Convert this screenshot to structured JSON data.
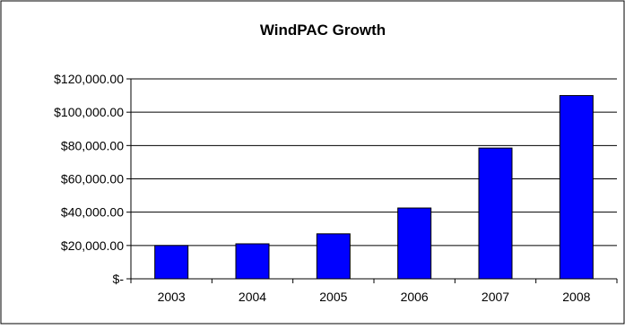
{
  "chart_data": {
    "type": "bar",
    "title": "WindPAC Growth",
    "xlabel": "",
    "ylabel": "",
    "categories": [
      "2003",
      "2004",
      "2005",
      "2006",
      "2007",
      "2008"
    ],
    "values": [
      20000,
      21000,
      27000,
      42500,
      78500,
      110000
    ],
    "ylim": [
      0,
      120000
    ],
    "yticks": [
      0,
      20000,
      40000,
      60000,
      80000,
      100000,
      120000
    ],
    "ytick_labels": [
      "$-",
      "$20,000.00",
      "$40,000.00",
      "$60,000.00",
      "$80,000.00",
      "$100,000.00",
      "$120,000.00"
    ],
    "grid": true,
    "legend": "none",
    "bar_color": "#0000ff",
    "bar_outline": "#000000"
  }
}
